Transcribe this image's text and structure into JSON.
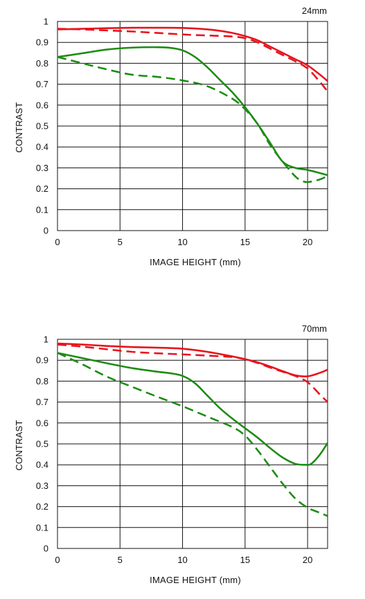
{
  "chart_data": [
    {
      "type": "line",
      "title": "24mm",
      "xlabel": "IMAGE HEIGHT (mm)",
      "ylabel": "CONTRAST",
      "xlim": [
        0,
        21.6
      ],
      "ylim": [
        0,
        1
      ],
      "xticks": [
        0,
        5,
        10,
        15,
        20
      ],
      "xtick_labels": [
        "0",
        "5",
        "10",
        "15",
        "20"
      ],
      "yticks": [
        0,
        0.1,
        0.2,
        0.3,
        0.4,
        0.5,
        0.6,
        0.7,
        0.8,
        0.9,
        1
      ],
      "ytick_labels": [
        "0",
        "0.1",
        "0.2",
        "0.3",
        "0.4",
        "0.5",
        "0.6",
        "0.7",
        "0.8",
        "0.9",
        "1"
      ],
      "grid": true,
      "series": [
        {
          "color": "#e8141c",
          "line_style": "solid",
          "x": [
            0,
            2,
            4,
            6,
            8,
            10,
            12,
            13,
            14,
            15,
            16,
            17,
            18,
            19,
            20,
            21,
            21.6
          ],
          "y": [
            0.962,
            0.965,
            0.968,
            0.97,
            0.97,
            0.969,
            0.962,
            0.955,
            0.945,
            0.93,
            0.91,
            0.88,
            0.85,
            0.82,
            0.79,
            0.745,
            0.715
          ]
        },
        {
          "color": "#e8141c",
          "line_style": "dashed",
          "x": [
            0,
            2,
            4,
            6,
            8,
            10,
            11,
            12,
            14,
            15,
            16,
            17,
            18,
            19,
            20,
            21,
            21.6
          ],
          "y": [
            0.965,
            0.962,
            0.957,
            0.952,
            0.945,
            0.938,
            0.935,
            0.933,
            0.928,
            0.92,
            0.9,
            0.87,
            0.84,
            0.81,
            0.775,
            0.71,
            0.665
          ]
        },
        {
          "color": "#1d8c14",
          "line_style": "solid",
          "x": [
            0,
            2,
            4,
            6,
            8,
            9,
            10,
            11,
            12,
            13,
            14,
            15,
            16,
            17,
            18,
            19,
            20,
            21,
            21.6
          ],
          "y": [
            0.83,
            0.848,
            0.866,
            0.875,
            0.877,
            0.874,
            0.862,
            0.83,
            0.78,
            0.72,
            0.66,
            0.59,
            0.51,
            0.42,
            0.33,
            0.3,
            0.29,
            0.275,
            0.265
          ]
        },
        {
          "color": "#1d8c14",
          "line_style": "dashed",
          "x": [
            0,
            2,
            4,
            6,
            8,
            10,
            12,
            14,
            15,
            16,
            17,
            18,
            19,
            19.5,
            20,
            21,
            21.6
          ],
          "y": [
            0.83,
            0.8,
            0.77,
            0.745,
            0.735,
            0.718,
            0.69,
            0.63,
            0.58,
            0.51,
            0.41,
            0.33,
            0.26,
            0.24,
            0.232,
            0.245,
            0.262
          ]
        }
      ]
    },
    {
      "type": "line",
      "title": "70mm",
      "xlabel": "IMAGE HEIGHT (mm)",
      "ylabel": "CONTRAST",
      "xlim": [
        0,
        21.6
      ],
      "ylim": [
        0,
        1
      ],
      "xticks": [
        0,
        5,
        10,
        15,
        20
      ],
      "xtick_labels": [
        "0",
        "5",
        "10",
        "15",
        "20"
      ],
      "yticks": [
        0,
        0.1,
        0.2,
        0.3,
        0.4,
        0.5,
        0.6,
        0.7,
        0.8,
        0.9,
        1
      ],
      "ytick_labels": [
        "0",
        "0.1",
        "0.2",
        "0.3",
        "0.4",
        "0.5",
        "0.6",
        "0.7",
        "0.8",
        "0.9",
        "1"
      ],
      "grid": true,
      "series": [
        {
          "color": "#e8141c",
          "line_style": "solid",
          "x": [
            0,
            2,
            4,
            6,
            8,
            10,
            12,
            14,
            15,
            16,
            17,
            18,
            19,
            20,
            21,
            21.6
          ],
          "y": [
            0.98,
            0.975,
            0.968,
            0.963,
            0.96,
            0.955,
            0.94,
            0.918,
            0.905,
            0.89,
            0.87,
            0.848,
            0.828,
            0.823,
            0.84,
            0.855
          ]
        },
        {
          "color": "#e8141c",
          "line_style": "dashed",
          "x": [
            0,
            2,
            4,
            6,
            8,
            10,
            12,
            14,
            15,
            16,
            17,
            18,
            19,
            20,
            21,
            21.6
          ],
          "y": [
            0.975,
            0.965,
            0.952,
            0.94,
            0.933,
            0.928,
            0.922,
            0.915,
            0.905,
            0.887,
            0.865,
            0.845,
            0.825,
            0.795,
            0.735,
            0.7
          ]
        },
        {
          "color": "#1d8c14",
          "line_style": "solid",
          "x": [
            0,
            2,
            4,
            6,
            8,
            9,
            10,
            11,
            12,
            13,
            14,
            15,
            16,
            17,
            18,
            19,
            19.8,
            20.3,
            21,
            21.6
          ],
          "y": [
            0.935,
            0.91,
            0.885,
            0.862,
            0.845,
            0.838,
            0.825,
            0.79,
            0.73,
            0.67,
            0.62,
            0.575,
            0.53,
            0.48,
            0.435,
            0.405,
            0.4,
            0.405,
            0.45,
            0.505
          ]
        },
        {
          "color": "#1d8c14",
          "line_style": "dashed",
          "x": [
            0,
            2,
            4,
            6,
            8,
            10,
            12,
            14,
            15,
            16,
            17,
            18,
            19,
            20,
            21,
            21.6
          ],
          "y": [
            0.935,
            0.88,
            0.82,
            0.772,
            0.725,
            0.68,
            0.63,
            0.58,
            0.54,
            0.47,
            0.39,
            0.31,
            0.24,
            0.195,
            0.17,
            0.155
          ]
        }
      ]
    }
  ]
}
